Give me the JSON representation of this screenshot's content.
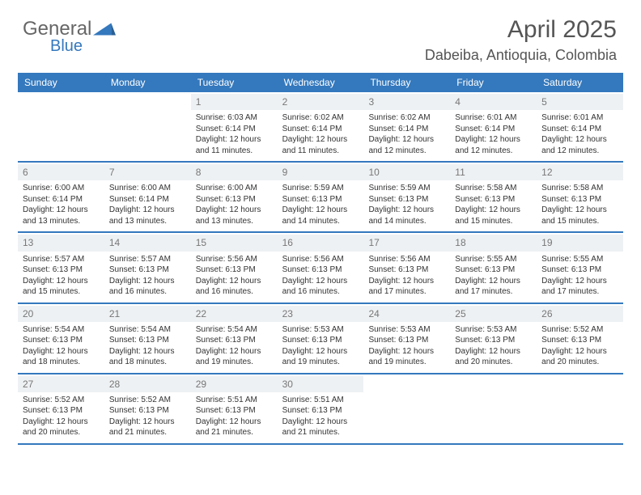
{
  "logo": {
    "text1": "General",
    "text2": "Blue",
    "triangle_color": "#3478bd"
  },
  "title": "April 2025",
  "location": "Dabeiba, Antioquia, Colombia",
  "header_bg": "#3478bd",
  "header_fg": "#ffffff",
  "daynum_bg": "#eef1f3",
  "daynum_fg": "#777777",
  "border_color": "#3478bd",
  "day_headers": [
    "Sunday",
    "Monday",
    "Tuesday",
    "Wednesday",
    "Thursday",
    "Friday",
    "Saturday"
  ],
  "weeks": [
    [
      null,
      null,
      {
        "num": "1",
        "sunrise": "6:03 AM",
        "sunset": "6:14 PM",
        "daylight": "12 hours and 11 minutes."
      },
      {
        "num": "2",
        "sunrise": "6:02 AM",
        "sunset": "6:14 PM",
        "daylight": "12 hours and 11 minutes."
      },
      {
        "num": "3",
        "sunrise": "6:02 AM",
        "sunset": "6:14 PM",
        "daylight": "12 hours and 12 minutes."
      },
      {
        "num": "4",
        "sunrise": "6:01 AM",
        "sunset": "6:14 PM",
        "daylight": "12 hours and 12 minutes."
      },
      {
        "num": "5",
        "sunrise": "6:01 AM",
        "sunset": "6:14 PM",
        "daylight": "12 hours and 12 minutes."
      }
    ],
    [
      {
        "num": "6",
        "sunrise": "6:00 AM",
        "sunset": "6:14 PM",
        "daylight": "12 hours and 13 minutes."
      },
      {
        "num": "7",
        "sunrise": "6:00 AM",
        "sunset": "6:14 PM",
        "daylight": "12 hours and 13 minutes."
      },
      {
        "num": "8",
        "sunrise": "6:00 AM",
        "sunset": "6:13 PM",
        "daylight": "12 hours and 13 minutes."
      },
      {
        "num": "9",
        "sunrise": "5:59 AM",
        "sunset": "6:13 PM",
        "daylight": "12 hours and 14 minutes."
      },
      {
        "num": "10",
        "sunrise": "5:59 AM",
        "sunset": "6:13 PM",
        "daylight": "12 hours and 14 minutes."
      },
      {
        "num": "11",
        "sunrise": "5:58 AM",
        "sunset": "6:13 PM",
        "daylight": "12 hours and 15 minutes."
      },
      {
        "num": "12",
        "sunrise": "5:58 AM",
        "sunset": "6:13 PM",
        "daylight": "12 hours and 15 minutes."
      }
    ],
    [
      {
        "num": "13",
        "sunrise": "5:57 AM",
        "sunset": "6:13 PM",
        "daylight": "12 hours and 15 minutes."
      },
      {
        "num": "14",
        "sunrise": "5:57 AM",
        "sunset": "6:13 PM",
        "daylight": "12 hours and 16 minutes."
      },
      {
        "num": "15",
        "sunrise": "5:56 AM",
        "sunset": "6:13 PM",
        "daylight": "12 hours and 16 minutes."
      },
      {
        "num": "16",
        "sunrise": "5:56 AM",
        "sunset": "6:13 PM",
        "daylight": "12 hours and 16 minutes."
      },
      {
        "num": "17",
        "sunrise": "5:56 AM",
        "sunset": "6:13 PM",
        "daylight": "12 hours and 17 minutes."
      },
      {
        "num": "18",
        "sunrise": "5:55 AM",
        "sunset": "6:13 PM",
        "daylight": "12 hours and 17 minutes."
      },
      {
        "num": "19",
        "sunrise": "5:55 AM",
        "sunset": "6:13 PM",
        "daylight": "12 hours and 17 minutes."
      }
    ],
    [
      {
        "num": "20",
        "sunrise": "5:54 AM",
        "sunset": "6:13 PM",
        "daylight": "12 hours and 18 minutes."
      },
      {
        "num": "21",
        "sunrise": "5:54 AM",
        "sunset": "6:13 PM",
        "daylight": "12 hours and 18 minutes."
      },
      {
        "num": "22",
        "sunrise": "5:54 AM",
        "sunset": "6:13 PM",
        "daylight": "12 hours and 19 minutes."
      },
      {
        "num": "23",
        "sunrise": "5:53 AM",
        "sunset": "6:13 PM",
        "daylight": "12 hours and 19 minutes."
      },
      {
        "num": "24",
        "sunrise": "5:53 AM",
        "sunset": "6:13 PM",
        "daylight": "12 hours and 19 minutes."
      },
      {
        "num": "25",
        "sunrise": "5:53 AM",
        "sunset": "6:13 PM",
        "daylight": "12 hours and 20 minutes."
      },
      {
        "num": "26",
        "sunrise": "5:52 AM",
        "sunset": "6:13 PM",
        "daylight": "12 hours and 20 minutes."
      }
    ],
    [
      {
        "num": "27",
        "sunrise": "5:52 AM",
        "sunset": "6:13 PM",
        "daylight": "12 hours and 20 minutes."
      },
      {
        "num": "28",
        "sunrise": "5:52 AM",
        "sunset": "6:13 PM",
        "daylight": "12 hours and 21 minutes."
      },
      {
        "num": "29",
        "sunrise": "5:51 AM",
        "sunset": "6:13 PM",
        "daylight": "12 hours and 21 minutes."
      },
      {
        "num": "30",
        "sunrise": "5:51 AM",
        "sunset": "6:13 PM",
        "daylight": "12 hours and 21 minutes."
      },
      null,
      null,
      null
    ]
  ],
  "labels": {
    "sunrise": "Sunrise: ",
    "sunset": "Sunset: ",
    "daylight": "Daylight: "
  }
}
